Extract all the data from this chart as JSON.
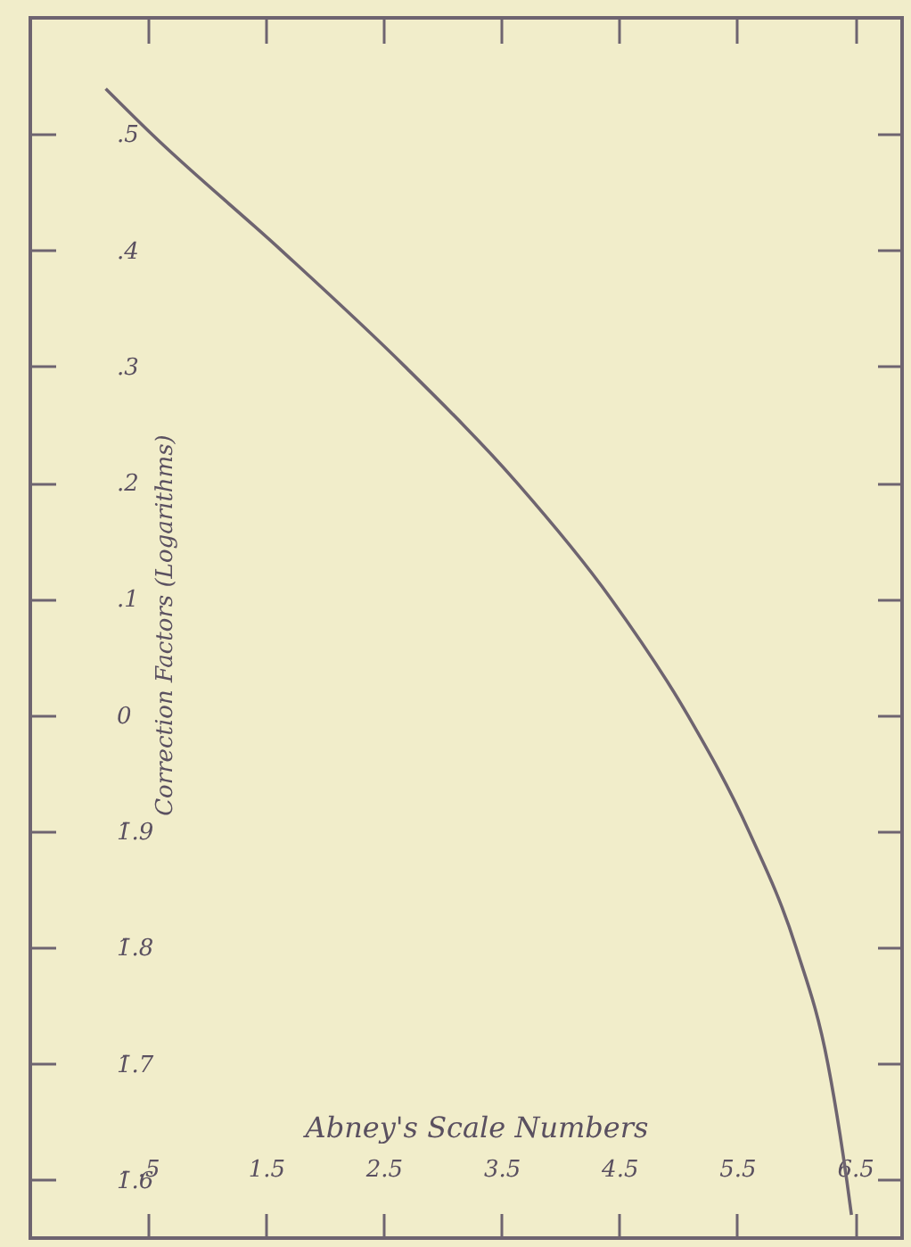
{
  "chart_data": {
    "type": "line",
    "xlabel": "Abney's Scale Numbers",
    "ylabel": "Correction Factors (Logarithms)",
    "x": [
      0.14,
      0.53,
      1.63,
      2.68,
      3.63,
      4.43,
      5.08,
      5.6,
      6.0,
      6.27,
      6.43,
      6.47
    ],
    "series": [
      {
        "color": "#6e6470",
        "values": [
          0.539,
          0.5,
          0.4,
          0.3,
          0.2,
          0.1,
          0.0,
          -0.1,
          -0.2,
          -0.3,
          -0.4,
          -0.43
        ]
      }
    ],
    "xlim": [
      -0.5,
      6.9
    ],
    "ylim": [
      -0.45,
      0.6
    ],
    "xticks": [
      {
        "value": 0.5,
        "label": ".5"
      },
      1.5,
      2.5,
      3.5,
      4.5,
      5.5,
      6.5
    ],
    "yticks": [
      {
        "value": 0.5,
        "label": ".5"
      },
      {
        "value": 0.4,
        "label": ".4"
      },
      {
        "value": 0.3,
        "label": ".3"
      },
      {
        "value": 0.2,
        "label": ".2"
      },
      {
        "value": 0.1,
        "label": ".1"
      },
      0,
      {
        "value": -0.1,
        "label": "1̄.9"
      },
      {
        "value": -0.2,
        "label": "1̄.8"
      },
      {
        "value": -0.3,
        "label": "1̄.7"
      },
      {
        "value": -0.4,
        "label": "1̄.6"
      }
    ],
    "marker": "none",
    "line_style": "solid"
  }
}
